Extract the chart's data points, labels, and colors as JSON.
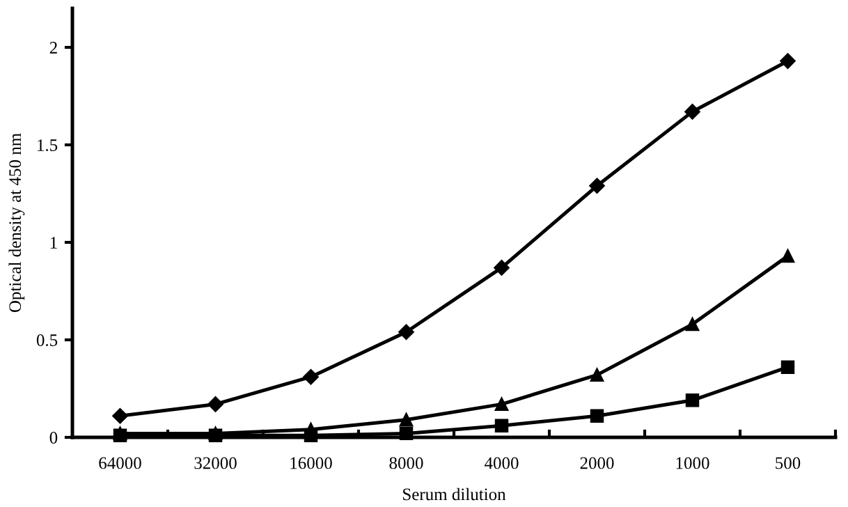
{
  "chart_data": {
    "type": "line",
    "xlabel": "Serum dilution",
    "ylabel": "Optical density at 450 nm",
    "categories": [
      "64000",
      "32000",
      "16000",
      "8000",
      "4000",
      "2000",
      "1000",
      "500"
    ],
    "series": [
      {
        "color": "#000000",
        "marker": "diamond",
        "values": [
          0.11,
          0.17,
          0.31,
          0.54,
          0.87,
          1.29,
          1.67,
          1.93
        ]
      },
      {
        "color": "#000000",
        "marker": "triangle",
        "values": [
          0.02,
          0.02,
          0.04,
          0.09,
          0.17,
          0.32,
          0.58,
          0.93
        ]
      },
      {
        "color": "#000000",
        "marker": "square",
        "values": [
          0.01,
          0.01,
          0.01,
          0.02,
          0.06,
          0.11,
          0.19,
          0.36
        ]
      }
    ],
    "ylim": [
      0,
      2.2
    ],
    "yticks": [
      0,
      0.5,
      1,
      1.5,
      2
    ],
    "grid": false,
    "legend": false,
    "line_style": "solid"
  }
}
